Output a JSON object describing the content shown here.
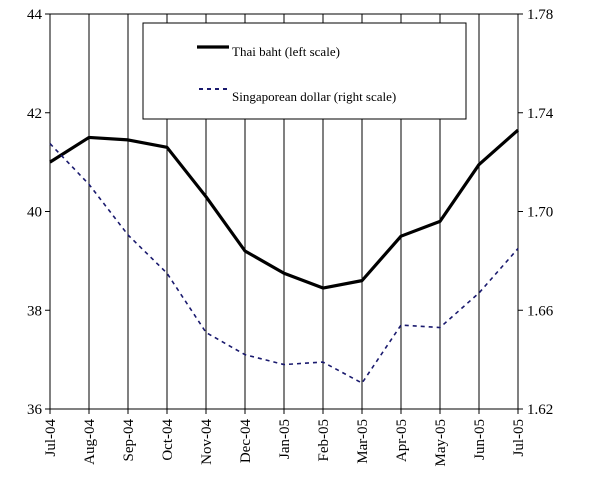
{
  "chart_data": {
    "type": "line",
    "title": "",
    "xlabel": "",
    "ylabel": "",
    "x": [
      "Jul-04",
      "Aug-04",
      "Sep-04",
      "Oct-04",
      "Nov-04",
      "Dec-04",
      "Jan-05",
      "Feb-05",
      "Mar-05",
      "Apr-05",
      "May-05",
      "Jun-05",
      "Jul-05"
    ],
    "left_axis": {
      "range": [
        36,
        44
      ],
      "ticks": [
        "36",
        "38",
        "40",
        "42",
        "44"
      ]
    },
    "right_axis": {
      "range": [
        1.62,
        1.78
      ],
      "ticks": [
        "1.62",
        "1.66",
        "1.70",
        "1.74",
        "1.78"
      ]
    },
    "grid": "vertical",
    "legend_position": "top-center",
    "series": [
      {
        "name": "Thai baht (left scale)",
        "axis": "left",
        "style": "solid",
        "color": "#000000",
        "values": [
          41.0,
          41.5,
          41.45,
          41.3,
          40.3,
          39.2,
          38.75,
          38.45,
          38.6,
          39.5,
          39.8,
          40.95,
          41.65
        ]
      },
      {
        "name": "Singaporean dollar (right scale)",
        "axis": "right",
        "style": "dashed",
        "color": "#1a1a6e",
        "values": [
          1.7275,
          1.711,
          1.6905,
          1.675,
          1.651,
          1.642,
          1.638,
          1.639,
          1.6305,
          1.654,
          1.653,
          1.667,
          1.685
        ]
      }
    ]
  }
}
